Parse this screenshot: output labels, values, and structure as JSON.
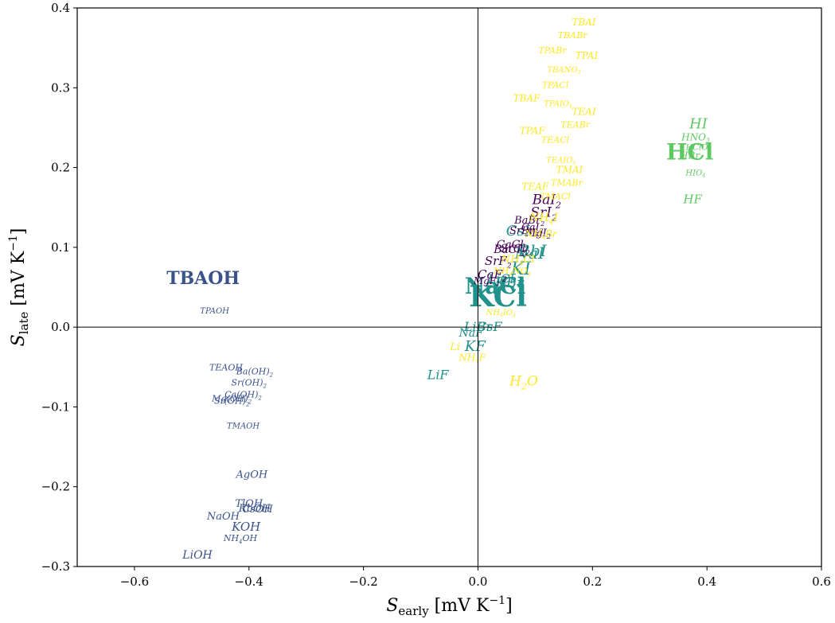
{
  "chart_data": {
    "type": "scatter",
    "xlabel": "S_early [mV K^-1]",
    "ylabel": "S_late [mV K^-1]",
    "xlim": [
      -0.7,
      0.6
    ],
    "ylim": [
      -0.3,
      0.4
    ],
    "x_ticks": [
      -0.6,
      -0.4,
      -0.2,
      0.0,
      0.2,
      0.4,
      0.6
    ],
    "x_tick_labels": [
      "−0.6",
      "−0.4",
      "−0.2",
      "0.0",
      "0.2",
      "0.4",
      "0.6"
    ],
    "y_ticks": [
      -0.3,
      -0.2,
      -0.1,
      0.0,
      0.1,
      0.2,
      0.3,
      0.4
    ],
    "y_tick_labels": [
      "−0.3",
      "−0.2",
      "−0.1",
      "0.0",
      "0.1",
      "0.2",
      "0.3",
      "0.4"
    ],
    "reference_lines": {
      "x": 0,
      "y": 0
    },
    "grid": false,
    "colors": {
      "hydroxide": "#3b528b",
      "alkali_halide": "#21918c",
      "acid": "#5ec962",
      "alkaline_earth": "#440154",
      "ammonium": "#fde725"
    },
    "points": [
      {
        "label": "TBAOH",
        "x": -0.48,
        "y": 0.06,
        "group": "hydroxide",
        "size": 22,
        "upright": true
      },
      {
        "label": "TPAOH",
        "x": -0.46,
        "y": 0.02,
        "group": "hydroxide",
        "size": 10
      },
      {
        "label": "TEAOH",
        "x": -0.44,
        "y": -0.051,
        "group": "hydroxide",
        "size": 11
      },
      {
        "label": "Ba(OH)2",
        "x": -0.39,
        "y": -0.056,
        "group": "hydroxide",
        "size": 11
      },
      {
        "label": "Sr(OH)2",
        "x": -0.4,
        "y": -0.07,
        "group": "hydroxide",
        "size": 11
      },
      {
        "label": "Ca(OH)2",
        "x": -0.41,
        "y": -0.085,
        "group": "hydroxide",
        "size": 11
      },
      {
        "label": "Mg(OH)2",
        "x": -0.43,
        "y": -0.09,
        "group": "hydroxide",
        "size": 11
      },
      {
        "label": "Sr(OH)2",
        "x": -0.43,
        "y": -0.093,
        "group": "hydroxide",
        "size": 11
      },
      {
        "label": "TMAOH",
        "x": -0.41,
        "y": -0.124,
        "group": "hydroxide",
        "size": 10
      },
      {
        "label": "AgOH",
        "x": -0.395,
        "y": -0.185,
        "group": "hydroxide",
        "size": 13
      },
      {
        "label": "TlOH",
        "x": -0.4,
        "y": -0.221,
        "group": "hydroxide",
        "size": 13
      },
      {
        "label": "CsOH",
        "x": -0.385,
        "y": -0.228,
        "group": "hydroxide",
        "size": 13
      },
      {
        "label": "RbOH",
        "x": -0.39,
        "y": -0.227,
        "group": "hydroxide",
        "size": 13
      },
      {
        "label": "NaOH",
        "x": -0.445,
        "y": -0.237,
        "group": "hydroxide",
        "size": 13
      },
      {
        "label": "KOH",
        "x": -0.405,
        "y": -0.251,
        "group": "hydroxide",
        "size": 15
      },
      {
        "label": "NH4OH",
        "x": -0.415,
        "y": -0.265,
        "group": "hydroxide",
        "size": 11
      },
      {
        "label": "LiOH",
        "x": -0.49,
        "y": -0.286,
        "group": "hydroxide",
        "size": 14
      },
      {
        "label": "KCl",
        "x": 0.035,
        "y": 0.035,
        "group": "alkali_halide",
        "size": 36,
        "upright": true
      },
      {
        "label": "NaCl",
        "x": 0.03,
        "y": 0.05,
        "group": "alkali_halide",
        "size": 28,
        "upright": true
      },
      {
        "label": "LiCl",
        "x": 0.04,
        "y": 0.06,
        "group": "alkali_halide",
        "size": 16
      },
      {
        "label": "KBr",
        "x": 0.055,
        "y": 0.055,
        "group": "alkali_halide",
        "size": 18
      },
      {
        "label": "CsI",
        "x": 0.07,
        "y": 0.12,
        "group": "alkali_halide",
        "size": 18
      },
      {
        "label": "NaI",
        "x": 0.09,
        "y": 0.092,
        "group": "alkali_halide",
        "size": 20
      },
      {
        "label": "RbI",
        "x": 0.095,
        "y": 0.095,
        "group": "alkali_halide",
        "size": 20
      },
      {
        "label": "KI",
        "x": 0.075,
        "y": 0.072,
        "group": "alkali_halide",
        "size": 22
      },
      {
        "label": "LiBr",
        "x": 0.0,
        "y": 0.0,
        "group": "alkali_halide",
        "size": 16
      },
      {
        "label": "CsF",
        "x": 0.02,
        "y": 0.0,
        "group": "alkali_halide",
        "size": 16
      },
      {
        "label": "NaF",
        "x": -0.012,
        "y": -0.008,
        "group": "alkali_halide",
        "size": 14
      },
      {
        "label": "KF",
        "x": -0.005,
        "y": -0.025,
        "group": "alkali_halide",
        "size": 18
      },
      {
        "label": "LiF",
        "x": -0.07,
        "y": -0.06,
        "group": "alkali_halide",
        "size": 16
      },
      {
        "label": "HCl",
        "x": 0.37,
        "y": 0.218,
        "group": "acid",
        "size": 28,
        "upright": true
      },
      {
        "label": "HI",
        "x": 0.385,
        "y": 0.254,
        "group": "acid",
        "size": 18
      },
      {
        "label": "HNO3",
        "x": 0.38,
        "y": 0.238,
        "group": "acid",
        "size": 12
      },
      {
        "label": "HClO4",
        "x": 0.385,
        "y": 0.225,
        "group": "acid",
        "size": 10
      },
      {
        "label": "HBr",
        "x": 0.37,
        "y": 0.215,
        "group": "acid",
        "size": 12
      },
      {
        "label": "HIO4",
        "x": 0.38,
        "y": 0.193,
        "group": "acid",
        "size": 10
      },
      {
        "label": "HF",
        "x": 0.375,
        "y": 0.159,
        "group": "acid",
        "size": 15
      },
      {
        "label": "BaI2",
        "x": 0.12,
        "y": 0.159,
        "group": "alkaline_earth",
        "size": 17
      },
      {
        "label": "SrI2",
        "x": 0.115,
        "y": 0.143,
        "group": "alkaline_earth",
        "size": 17
      },
      {
        "label": "BaBr2",
        "x": 0.09,
        "y": 0.134,
        "group": "alkaline_earth",
        "size": 13
      },
      {
        "label": "SrBr2",
        "x": 0.08,
        "y": 0.121,
        "group": "alkaline_earth",
        "size": 13
      },
      {
        "label": "CaI2",
        "x": 0.095,
        "y": 0.125,
        "group": "alkaline_earth",
        "size": 13
      },
      {
        "label": "MgI2",
        "x": 0.105,
        "y": 0.118,
        "group": "alkaline_earth",
        "size": 13
      },
      {
        "label": "CaCl2",
        "x": 0.06,
        "y": 0.103,
        "group": "alkaline_earth",
        "size": 14
      },
      {
        "label": "BaCl2",
        "x": 0.055,
        "y": 0.097,
        "group": "alkaline_earth",
        "size": 14
      },
      {
        "label": "SrCl2",
        "x": 0.065,
        "y": 0.098,
        "group": "alkaline_earth",
        "size": 14
      },
      {
        "label": "SrF2",
        "x": 0.035,
        "y": 0.082,
        "group": "alkaline_earth",
        "size": 15
      },
      {
        "label": "CaF2",
        "x": 0.025,
        "y": 0.065,
        "group": "alkaline_earth",
        "size": 15
      },
      {
        "label": "MgF2",
        "x": 0.015,
        "y": 0.058,
        "group": "alkaline_earth",
        "size": 12
      },
      {
        "label": "TBAI",
        "x": 0.185,
        "y": 0.382,
        "group": "ammonium",
        "size": 12
      },
      {
        "label": "TBABr",
        "x": 0.165,
        "y": 0.365,
        "group": "ammonium",
        "size": 11
      },
      {
        "label": "TPABr",
        "x": 0.13,
        "y": 0.346,
        "group": "ammonium",
        "size": 11
      },
      {
        "label": "TPAI",
        "x": 0.19,
        "y": 0.34,
        "group": "ammonium",
        "size": 12
      },
      {
        "label": "TBANO3",
        "x": 0.15,
        "y": 0.322,
        "group": "ammonium",
        "size": 10
      },
      {
        "label": "TPACl",
        "x": 0.135,
        "y": 0.303,
        "group": "ammonium",
        "size": 11
      },
      {
        "label": "TBAF",
        "x": 0.085,
        "y": 0.287,
        "group": "ammonium",
        "size": 12
      },
      {
        "label": "TPAIO4",
        "x": 0.14,
        "y": 0.28,
        "group": "ammonium",
        "size": 10
      },
      {
        "label": "TEAI",
        "x": 0.185,
        "y": 0.27,
        "group": "ammonium",
        "size": 12
      },
      {
        "label": "TEABr",
        "x": 0.17,
        "y": 0.253,
        "group": "ammonium",
        "size": 11
      },
      {
        "label": "TPAF",
        "x": 0.095,
        "y": 0.246,
        "group": "ammonium",
        "size": 12
      },
      {
        "label": "TEACl",
        "x": 0.135,
        "y": 0.234,
        "group": "ammonium",
        "size": 11
      },
      {
        "label": "TEAIO4",
        "x": 0.145,
        "y": 0.209,
        "group": "ammonium",
        "size": 10
      },
      {
        "label": "TMAI",
        "x": 0.16,
        "y": 0.197,
        "group": "ammonium",
        "size": 12
      },
      {
        "label": "TMABr",
        "x": 0.155,
        "y": 0.18,
        "group": "ammonium",
        "size": 11
      },
      {
        "label": "TEAF",
        "x": 0.1,
        "y": 0.176,
        "group": "ammonium",
        "size": 12
      },
      {
        "label": "TMACl",
        "x": 0.135,
        "y": 0.163,
        "group": "ammonium",
        "size": 11
      },
      {
        "label": "NH4I",
        "x": 0.115,
        "y": 0.137,
        "group": "ammonium",
        "size": 14
      },
      {
        "label": "NH4Br",
        "x": 0.11,
        "y": 0.117,
        "group": "ammonium",
        "size": 12
      },
      {
        "label": "NH4Cl",
        "x": 0.07,
        "y": 0.085,
        "group": "ammonium",
        "size": 13
      },
      {
        "label": "NH4NO3",
        "x": 0.06,
        "y": 0.07,
        "group": "ammonium",
        "size": 11
      },
      {
        "label": "NH4IO4",
        "x": 0.04,
        "y": 0.018,
        "group": "ammonium",
        "size": 10
      },
      {
        "label": "NH4F",
        "x": -0.01,
        "y": -0.038,
        "group": "ammonium",
        "size": 12
      },
      {
        "label": "Li",
        "x": -0.04,
        "y": -0.025,
        "group": "ammonium",
        "size": 13
      },
      {
        "label": "H2O",
        "x": 0.08,
        "y": -0.068,
        "group": "ammonium",
        "size": 17
      }
    ]
  }
}
